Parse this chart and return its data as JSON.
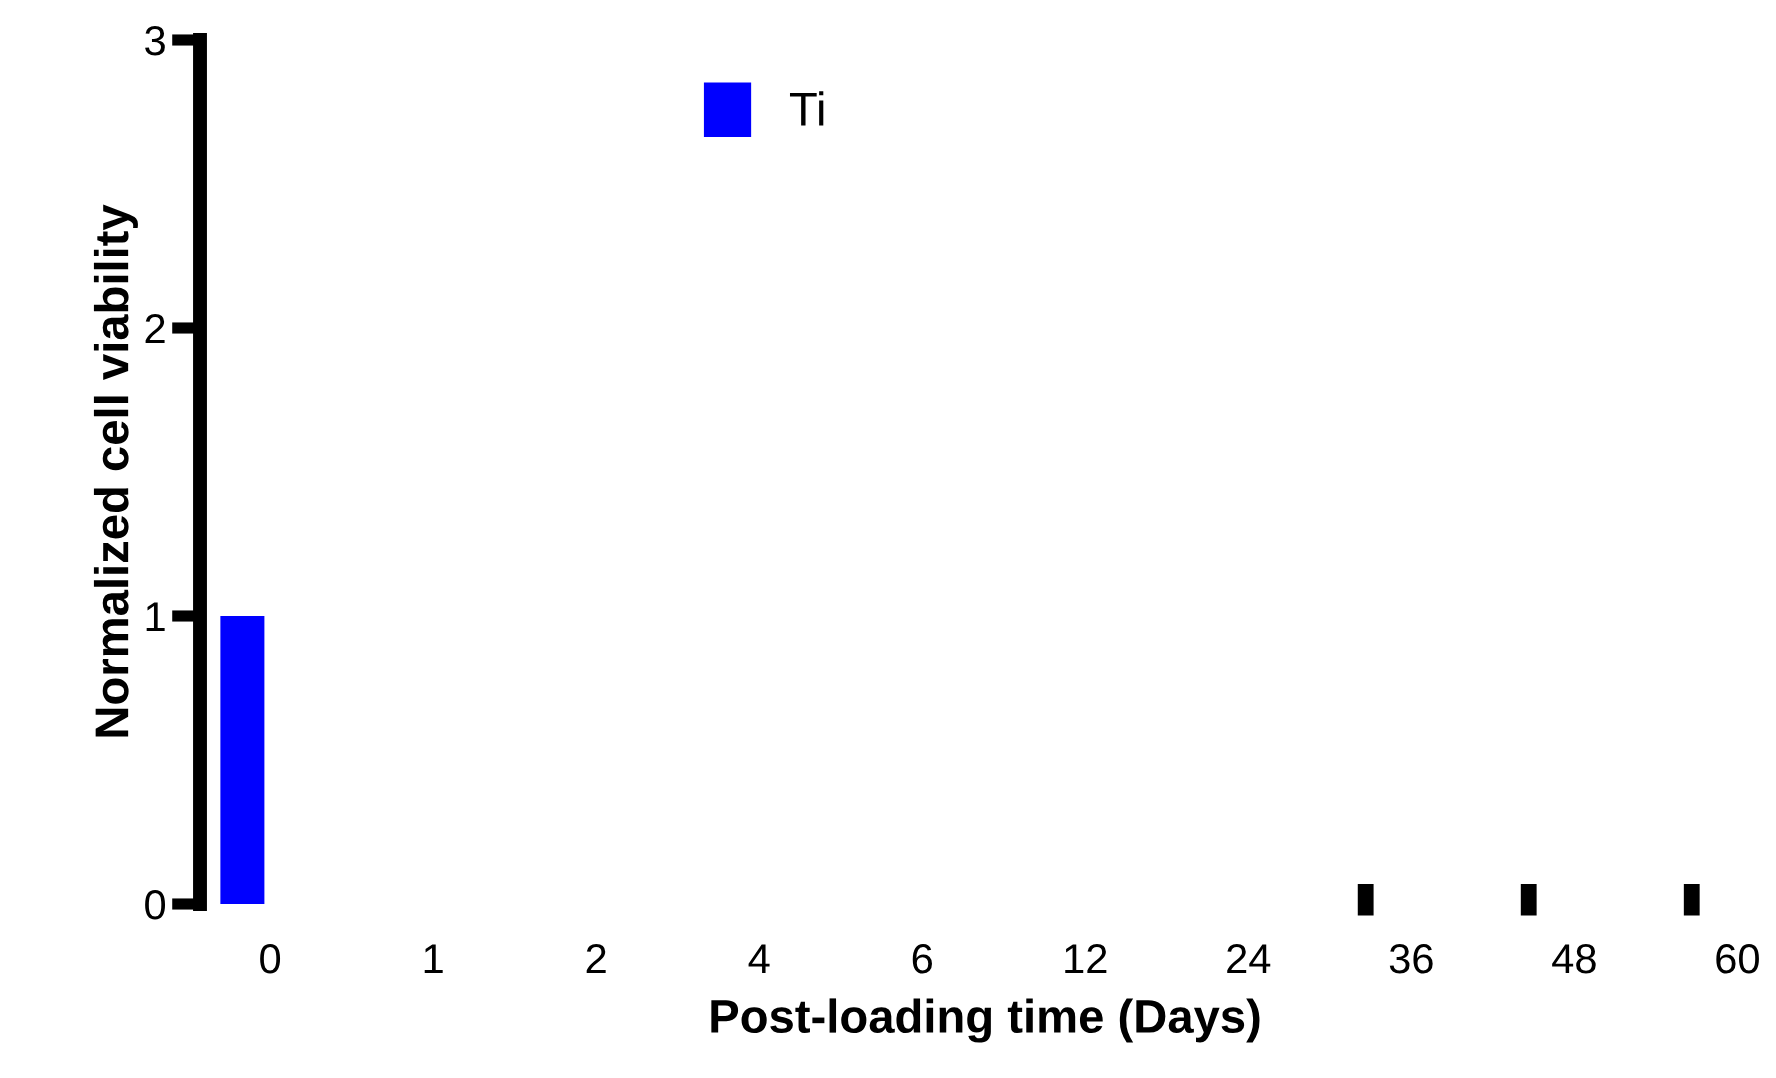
{
  "chart_data": {
    "type": "bar",
    "xlabel": "Post-loading time (Days)",
    "ylabel": "Normalized cell viability",
    "categories": [
      "0",
      "1",
      "2",
      "4",
      "6",
      "12",
      "24",
      "36",
      "48",
      "60"
    ],
    "series": [
      {
        "name": "Ti",
        "color": "#0000ff",
        "values": [
          1,
          null,
          null,
          null,
          null,
          null,
          null,
          null,
          null,
          null
        ]
      }
    ],
    "ylim": [
      0,
      3
    ],
    "yticks": [
      0,
      1,
      2,
      3
    ],
    "grid": false,
    "legend": "top"
  }
}
